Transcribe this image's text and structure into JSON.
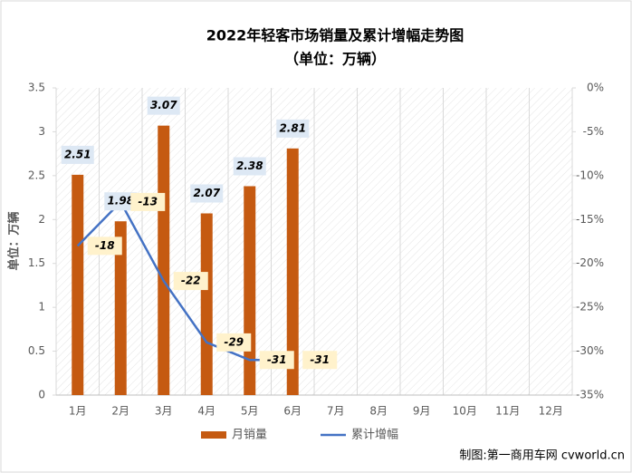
{
  "chart_data": {
    "type": "bar_line",
    "title": "2022年轻客市场销量及累计增幅走势图",
    "subtitle": "（单位：万辆）",
    "y_label": "单位：万辆",
    "source": "制图:第一商用车网 cvworld.cn",
    "categories": [
      "1月",
      "2月",
      "3月",
      "4月",
      "5月",
      "6月",
      "7月",
      "8月",
      "9月",
      "10月",
      "11月",
      "12月"
    ],
    "series": [
      {
        "name": "月销量",
        "color": "#c55a11",
        "values": [
          2.51,
          1.98,
          3.07,
          2.07,
          2.38,
          2.81,
          null,
          null,
          null,
          null,
          null,
          null
        ]
      },
      {
        "name": "累计增幅",
        "color": "#4472c4",
        "axis": "y2",
        "values": [
          -18,
          -13,
          -22,
          -29,
          -31,
          -31,
          null,
          null,
          null,
          null,
          null,
          null
        ],
        "value_labels": [
          "-18%",
          "-13%",
          "-22%",
          "-29%",
          "-31%",
          "-31%",
          null,
          null,
          null,
          null,
          null,
          null
        ]
      }
    ],
    "ylim": [
      0,
      3.5
    ],
    "yticks": [
      0,
      0.5,
      1,
      1.5,
      2,
      2.5,
      3,
      3.5
    ],
    "y2lim": [
      -35,
      0
    ],
    "y2ticks": [
      {
        "value": -35,
        "label": "-35%"
      },
      {
        "value": -30,
        "label": "-30%"
      },
      {
        "value": -25,
        "label": "-25%"
      },
      {
        "value": -20,
        "label": "-20%"
      },
      {
        "value": -15,
        "label": "-15%"
      },
      {
        "value": -10,
        "label": "-10%"
      },
      {
        "value": -5,
        "label": "-5%"
      },
      {
        "value": 0,
        "label": "0%"
      }
    ]
  }
}
